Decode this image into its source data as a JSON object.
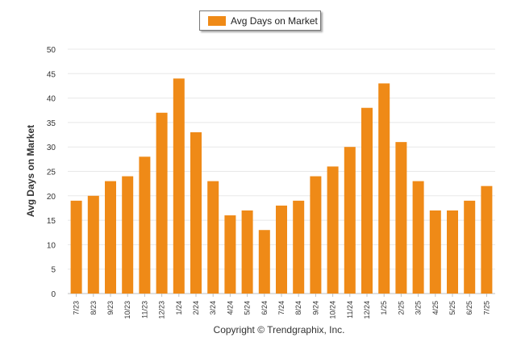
{
  "legend": {
    "label": "Avg Days on Market"
  },
  "footer": {
    "copyright": "Copyright © Trendgraphix, Inc."
  },
  "colors": {
    "bar": "#ef8a17",
    "grid": "#e8e8e8",
    "axis": "#bfbfbf",
    "text": "#333333"
  },
  "chart_data": {
    "type": "bar",
    "title": "",
    "xlabel": "",
    "ylabel": "Avg Days on Market",
    "ylim": [
      0,
      50
    ],
    "yticks": [
      0,
      5,
      10,
      15,
      20,
      25,
      30,
      35,
      40,
      45,
      50
    ],
    "grid": true,
    "legend_position": "top-center",
    "categories": [
      "7/23",
      "8/23",
      "9/23",
      "10/23",
      "11/23",
      "12/23",
      "1/24",
      "2/24",
      "3/24",
      "4/24",
      "5/24",
      "6/24",
      "7/24",
      "8/24",
      "9/24",
      "10/24",
      "11/24",
      "12/24",
      "1/25",
      "2/25",
      "3/25",
      "4/25",
      "5/25",
      "6/25",
      "7/25"
    ],
    "series": [
      {
        "name": "Avg Days on Market",
        "values": [
          19,
          20,
          23,
          24,
          28,
          37,
          44,
          33,
          23,
          16,
          17,
          13,
          18,
          19,
          24,
          26,
          30,
          38,
          43,
          31,
          23,
          17,
          17,
          19,
          22
        ]
      }
    ]
  }
}
